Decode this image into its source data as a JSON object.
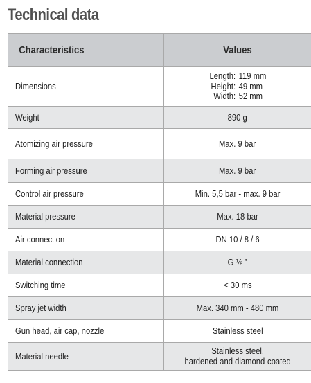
{
  "page": {
    "title": "Technical data"
  },
  "table": {
    "headers": {
      "characteristics": "Characteristics",
      "values": "Values"
    },
    "dimensions": {
      "label": "Dimensions",
      "length_label": "Length:",
      "length_value": "119 mm",
      "height_label": "Height:",
      "height_value": "49 mm",
      "width_label": "Width:",
      "width_value": "52 mm"
    },
    "rows": [
      {
        "label": "Weight",
        "value": "890 g"
      },
      {
        "label": "Atomizing air pressure",
        "value": "Max. 9 bar"
      },
      {
        "label": "Forming air pressure",
        "value": "Max. 9 bar"
      },
      {
        "label": "Control air pressure",
        "value": "Min. 5,5 bar - max. 9 bar"
      },
      {
        "label": "Material pressure",
        "value": "Max. 18 bar"
      },
      {
        "label": "Air connection",
        "value": "DN 10 / 8 / 6"
      },
      {
        "label": "Material connection",
        "value": "G ⅛ ”"
      },
      {
        "label": "Switching time",
        "value": "< 30 ms"
      },
      {
        "label": "Spray jet width",
        "value": "Max. 340 mm - 480 mm"
      },
      {
        "label": "Gun head, air cap, nozzle",
        "value": "Stainless steel"
      }
    ],
    "needle": {
      "label": "Material needle",
      "value_line1": "Stainless steel,",
      "value_line2": "hardened and diamond-coated"
    }
  }
}
